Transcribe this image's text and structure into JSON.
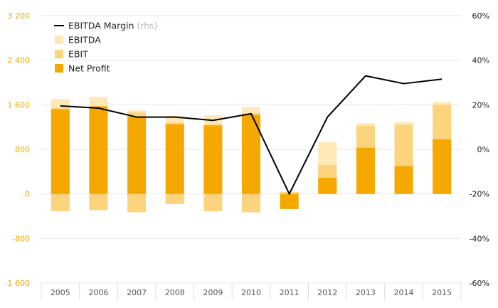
{
  "chart_data": {
    "type": "bar",
    "subtype": "overlapping-bars-with-line-secondary-axis",
    "categories": [
      "2005",
      "2006",
      "2007",
      "2008",
      "2009",
      "2010",
      "2011",
      "2012",
      "2013",
      "2014",
      "2015"
    ],
    "left_axis": {
      "ylim": [
        -1600,
        3200
      ],
      "ticks": [
        -1600,
        -800,
        0,
        800,
        1600,
        2400,
        3200
      ],
      "tick_labels": [
        "-1 600",
        "-800",
        "0",
        "800",
        "1 600",
        "2 400",
        "3 200"
      ],
      "tick_color": "#f0a500"
    },
    "right_axis": {
      "ylim": [
        -60,
        60
      ],
      "ticks": [
        -60,
        -40,
        -20,
        0,
        20,
        40,
        60
      ],
      "tick_labels": [
        "-60%",
        "-40%",
        "-20%",
        "0%",
        "20%",
        "40%",
        "60%"
      ]
    },
    "grid": true,
    "legend_placement": "top-left",
    "series": [
      {
        "name": "EBITDA",
        "kind": "bar",
        "color": "#fde9b8",
        "values": [
          1700,
          1740,
          1500,
          1400,
          1410,
          1560,
          40,
          930,
          1270,
          1290,
          1650
        ],
        "negative_values": [
          -300,
          -290,
          -320,
          -180,
          -300,
          -320,
          -260,
          0,
          0,
          0,
          0
        ]
      },
      {
        "name": "EBIT",
        "kind": "bar",
        "color": "#fdd47e",
        "values": [
          1540,
          1580,
          1460,
          1280,
          1250,
          1450,
          30,
          520,
          1220,
          1240,
          1600
        ],
        "negative_values": [
          -310,
          -290,
          -330,
          -180,
          -310,
          -330,
          -270,
          0,
          0,
          0,
          0
        ]
      },
      {
        "name": "Net Profit",
        "kind": "bar",
        "color": "#f5a800",
        "values": [
          1520,
          1570,
          1390,
          1250,
          1230,
          1420,
          -270,
          290,
          830,
          500,
          980
        ],
        "negative_values": [
          0,
          0,
          0,
          0,
          0,
          0,
          0,
          0,
          0,
          0,
          0
        ]
      },
      {
        "name": "EBITDA Margin",
        "name_note": "(rhs)",
        "kind": "line",
        "axis": "right",
        "color": "#000000",
        "values": [
          19.5,
          18.5,
          14.5,
          14.5,
          13,
          16,
          -20,
          14.5,
          33,
          29.5,
          31.5
        ]
      }
    ]
  }
}
